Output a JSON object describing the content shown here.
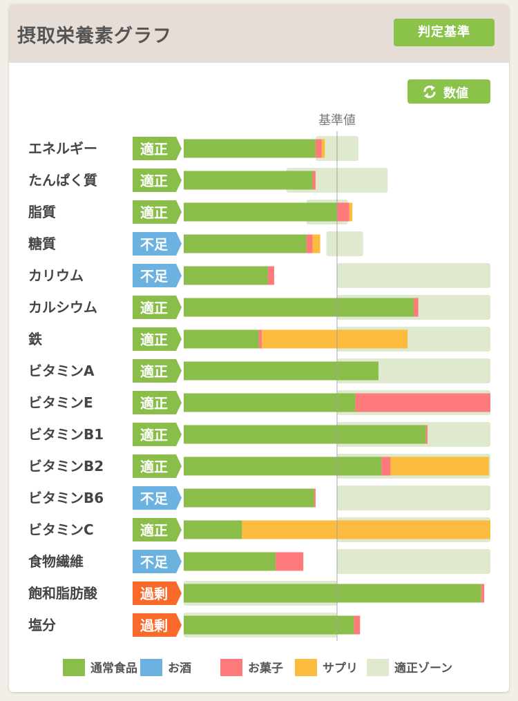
{
  "header": {
    "title": "摂取栄養素グラフ",
    "criteria_button": "判定基準"
  },
  "values_button": {
    "label": "数値",
    "icon": "refresh-icon"
  },
  "colors": {
    "normal_food": "#8bbd4b",
    "alcohol": "#6cb2e0",
    "snacks": "#ff7a7a",
    "supplement": "#fbbb3f",
    "proper_zone": "#dee9cd",
    "status_ok": "#8bbd4b",
    "status_low": "#6cb2e0",
    "status_high": "#f9692a"
  },
  "chart_data": {
    "type": "bar",
    "orientation": "horizontal",
    "stacked": true,
    "reference_label": "基準値",
    "reference_value": 100,
    "x_range": [
      0,
      200
    ],
    "categories": [
      "エネルギー",
      "たんぱく質",
      "脂質",
      "糖質",
      "カリウム",
      "カルシウム",
      "鉄",
      "ビタミンA",
      "ビタミンE",
      "ビタミンB1",
      "ビタミンB2",
      "ビタミンB6",
      "ビタミンC",
      "食物繊維",
      "飽和脂肪酸",
      "塩分"
    ],
    "status": [
      "適正",
      "適正",
      "適正",
      "不足",
      "不足",
      "適正",
      "適正",
      "適正",
      "適正",
      "適正",
      "適正",
      "不足",
      "適正",
      "不足",
      "過剰",
      "過剰"
    ],
    "series": [
      {
        "name": "通常食品",
        "key": "normal_food",
        "values": [
          86,
          84,
          100,
          80,
          55,
          150,
          49,
          127,
          112,
          158,
          129,
          85,
          38,
          60,
          194,
          111
        ]
      },
      {
        "name": "お酒",
        "key": "alcohol",
        "values": [
          0,
          0,
          0,
          0,
          0,
          0,
          0,
          0,
          0,
          0,
          0,
          0,
          0,
          0,
          0,
          0
        ]
      },
      {
        "name": "お菓子",
        "key": "snacks",
        "values": [
          4,
          2,
          8,
          4,
          4,
          3,
          2,
          0,
          88,
          1,
          6,
          1,
          0,
          18,
          2,
          4
        ]
      },
      {
        "name": "サプリ",
        "key": "supplement",
        "values": [
          2,
          0,
          2,
          5,
          0,
          0,
          95,
          0,
          0,
          0,
          64,
          0,
          162,
          0,
          0,
          0
        ]
      }
    ],
    "proper_zone_range": [
      [
        86,
        114
      ],
      [
        67,
        133
      ],
      [
        80,
        107
      ],
      [
        93,
        117
      ],
      [
        100,
        200
      ],
      [
        100,
        200
      ],
      [
        100,
        200
      ],
      [
        100,
        200
      ],
      [
        100,
        200
      ],
      [
        100,
        200
      ],
      [
        100,
        200
      ],
      [
        100,
        200
      ],
      [
        100,
        200
      ],
      [
        100,
        200
      ],
      [
        0,
        100
      ],
      [
        0,
        100
      ]
    ],
    "legend": [
      "通常食品",
      "お酒",
      "お菓子",
      "サプリ",
      "適正ゾーン"
    ],
    "legend_position": "bottom"
  }
}
